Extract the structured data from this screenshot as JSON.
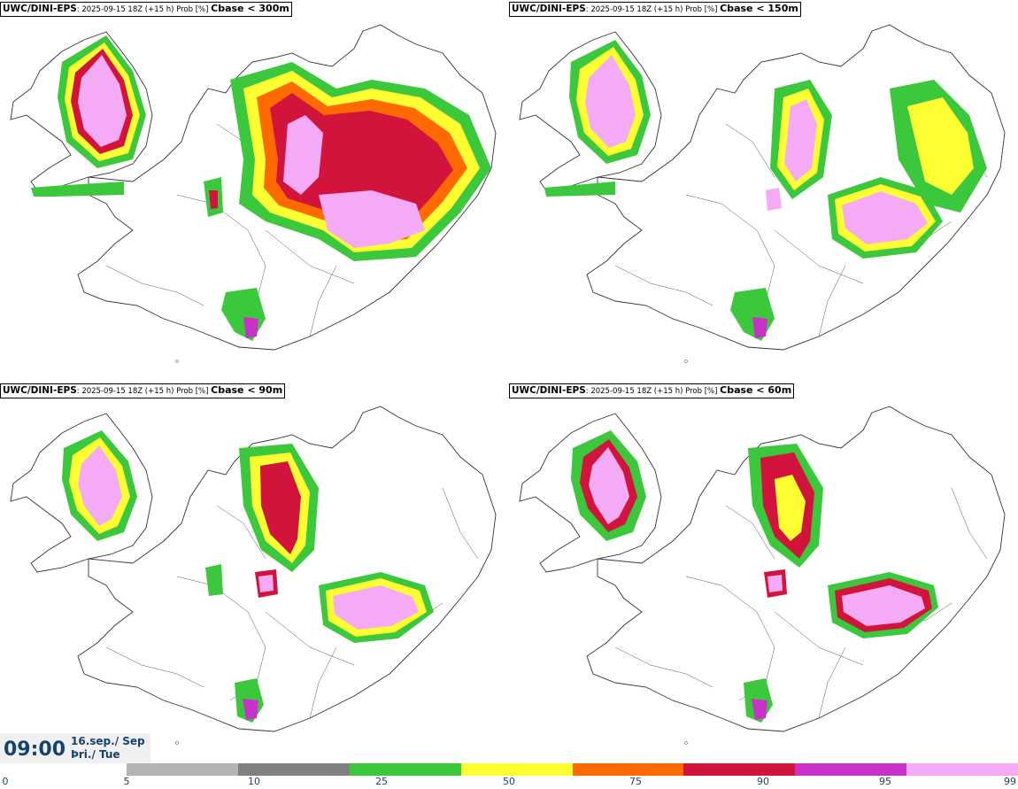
{
  "panels": [
    {
      "model": "UWC/DINI-EPS",
      "run": ": 2025-09-15 18Z (+15 h) Prob [%] ",
      "variable": "Cbase < 300m"
    },
    {
      "model": "UWC/DINI-EPS",
      "run": ": 2025-09-15 18Z (+15 h) Prob [%] ",
      "variable": "Cbase < 150m"
    },
    {
      "model": "UWC/DINI-EPS",
      "run": ": 2025-09-15 18Z (+15 h) Prob [%] ",
      "variable": "Cbase < 90m"
    },
    {
      "model": "UWC/DINI-EPS",
      "run": ": 2025-09-15 18Z (+15 h) Prob [%] ",
      "variable": "Cbase < 60m"
    }
  ],
  "valid_time": {
    "time": "09:00",
    "date_line": "16.sep./ Sep",
    "day_line": "Þri./ Tue"
  },
  "colorbar": {
    "ticks": [
      "0",
      "5",
      "10",
      "25",
      "50",
      "75",
      "90",
      "95",
      "99"
    ],
    "colors": [
      "#b4b4b4",
      "#808080",
      "#3cc83c",
      "#ffff32",
      "#ff6a00",
      "#d2143c",
      "#c832c8",
      "#f5aaf5"
    ]
  },
  "colors": {
    "coastline": "#333333",
    "text_accent": "#17426e"
  }
}
